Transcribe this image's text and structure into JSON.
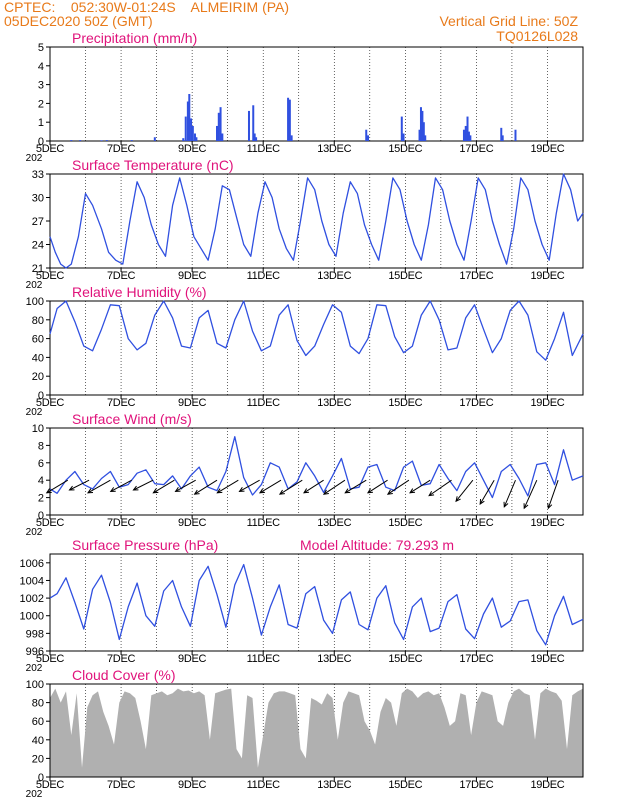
{
  "header": {
    "line1": "CPTEC:    052:30W-01:24S    ALMEIRIM (PA)",
    "line2": "05DEC2020 50Z (GMT)",
    "right1": "Vertical Grid Line: 50Z",
    "right2": "TQ0126L028"
  },
  "colors": {
    "header": "#e87a1a",
    "title": "#e0137b",
    "line": "#3050e0",
    "cloud": "#b0b0b0",
    "arrow": "#000000"
  },
  "x_axis": {
    "range_days": [
      0,
      15
    ],
    "ticks": [
      0,
      2,
      4,
      6,
      8,
      10,
      12,
      14
    ],
    "tick_labels": [
      "5DEC",
      "7DEC",
      "9DEC",
      "11DEC",
      "13DEC",
      "15DEC",
      "17DEC",
      "19DEC"
    ],
    "clipped_label": "202"
  },
  "extra_label": "Model Altitude: 79.293 m",
  "chart_data": [
    {
      "type": "bar",
      "title": "Precipitation (mm/h)",
      "ylim": [
        0,
        5
      ],
      "yticks": [
        0,
        1,
        2,
        3,
        4,
        5
      ],
      "x": [
        0.6,
        0.85,
        1.45,
        1.6,
        2.3,
        2.95,
        3.75,
        3.82,
        3.88,
        3.92,
        3.97,
        4.02,
        4.08,
        4.12,
        4.7,
        4.75,
        4.8,
        4.85,
        5.6,
        5.72,
        5.76,
        5.8,
        6.7,
        6.75,
        6.8,
        8.9,
        8.95,
        9.9,
        9.95,
        10.4,
        10.44,
        10.48,
        10.52,
        10.56,
        11.65,
        11.7,
        11.75,
        11.79,
        11.83,
        12.7,
        12.74,
        13.1
      ],
      "values": [
        0.05,
        0.05,
        0.04,
        0.05,
        0.05,
        0.2,
        0.15,
        1.3,
        2.1,
        2.5,
        1.2,
        0.8,
        0.4,
        0.2,
        0.8,
        1.5,
        1.8,
        0.4,
        1.6,
        1.9,
        0.4,
        0.2,
        2.3,
        2.2,
        0.3,
        0.6,
        0.3,
        1.3,
        0.4,
        0.6,
        1.8,
        1.6,
        1.0,
        0.3,
        0.6,
        0.8,
        1.3,
        0.5,
        0.3,
        0.7,
        0.3,
        0.6
      ]
    },
    {
      "type": "line",
      "title": "Surface Temperature (nC)",
      "ylim": [
        21,
        33
      ],
      "yticks": [
        21,
        24,
        27,
        30,
        33
      ],
      "x": [
        0,
        0.15,
        0.3,
        0.45,
        0.6,
        0.8,
        1.0,
        1.2,
        1.45,
        1.65,
        1.85,
        2.05,
        2.25,
        2.45,
        2.65,
        2.85,
        3.05,
        3.25,
        3.45,
        3.65,
        3.85,
        4.05,
        4.25,
        4.45,
        4.65,
        4.85,
        5.05,
        5.25,
        5.45,
        5.65,
        5.85,
        6.05,
        6.25,
        6.45,
        6.65,
        6.85,
        7.05,
        7.25,
        7.45,
        7.65,
        7.85,
        8.05,
        8.25,
        8.45,
        8.65,
        8.85,
        9.05,
        9.25,
        9.45,
        9.65,
        9.85,
        10.05,
        10.25,
        10.45,
        10.65,
        10.85,
        11.05,
        11.25,
        11.45,
        11.65,
        11.85,
        12.05,
        12.25,
        12.45,
        12.65,
        12.85,
        13.05,
        13.25,
        13.45,
        13.65,
        13.85,
        14.05,
        14.25,
        14.45,
        14.65,
        14.85,
        15.0
      ],
      "values": [
        25,
        23,
        21.5,
        21,
        21.5,
        25,
        30.5,
        29,
        26,
        23,
        22,
        21.5,
        27,
        32,
        30,
        26.5,
        24,
        22.5,
        29,
        32.5,
        29,
        25,
        23.5,
        22,
        26,
        31.5,
        31,
        27.5,
        24,
        22.5,
        28,
        32,
        30,
        26,
        23.5,
        22,
        27,
        32.5,
        31,
        27,
        24,
        22.5,
        28,
        32,
        30.5,
        26.5,
        24,
        22,
        27,
        32.5,
        31,
        27,
        24,
        22,
        26.5,
        32.5,
        31,
        27,
        24,
        22,
        27,
        32.5,
        31,
        27,
        24,
        21.5,
        26,
        32.5,
        31,
        27,
        24,
        22,
        28,
        33,
        31,
        27,
        28
      ]
    },
    {
      "type": "line",
      "title": "Relative Humidity (%)",
      "ylim": [
        0,
        100
      ],
      "yticks": [
        0,
        20,
        40,
        60,
        80,
        100
      ],
      "x": [
        0,
        0.2,
        0.45,
        0.7,
        0.95,
        1.2,
        1.45,
        1.7,
        1.95,
        2.2,
        2.45,
        2.7,
        2.95,
        3.2,
        3.45,
        3.7,
        3.95,
        4.2,
        4.45,
        4.7,
        4.95,
        5.2,
        5.45,
        5.7,
        5.95,
        6.2,
        6.45,
        6.7,
        6.95,
        7.2,
        7.45,
        7.7,
        7.95,
        8.2,
        8.45,
        8.7,
        8.95,
        9.2,
        9.45,
        9.7,
        9.95,
        10.2,
        10.45,
        10.7,
        10.95,
        11.2,
        11.45,
        11.7,
        11.95,
        12.2,
        12.45,
        12.7,
        12.95,
        13.2,
        13.45,
        13.7,
        13.95,
        14.2,
        14.45,
        14.7,
        15.0
      ],
      "values": [
        65,
        92,
        100,
        78,
        52,
        47,
        70,
        96,
        95,
        60,
        48,
        55,
        85,
        100,
        82,
        52,
        50,
        82,
        90,
        55,
        50,
        80,
        100,
        68,
        47,
        52,
        85,
        96,
        58,
        42,
        52,
        75,
        96,
        88,
        52,
        44,
        60,
        96,
        95,
        62,
        45,
        52,
        85,
        100,
        80,
        48,
        50,
        82,
        96,
        70,
        45,
        60,
        90,
        100,
        85,
        46,
        37,
        60,
        88,
        42,
        65
      ]
    },
    {
      "type": "line",
      "title": "Surface Wind (m/s)",
      "ylim": [
        0,
        10
      ],
      "yticks": [
        0,
        2,
        4,
        6,
        8,
        10
      ],
      "x": [
        0,
        0.2,
        0.45,
        0.7,
        0.95,
        1.2,
        1.45,
        1.7,
        1.95,
        2.2,
        2.45,
        2.7,
        2.95,
        3.2,
        3.45,
        3.7,
        3.95,
        4.2,
        4.45,
        4.7,
        4.95,
        5.2,
        5.45,
        5.7,
        5.95,
        6.2,
        6.45,
        6.7,
        6.95,
        7.2,
        7.45,
        7.7,
        7.95,
        8.2,
        8.45,
        8.7,
        8.95,
        9.2,
        9.45,
        9.7,
        9.95,
        10.2,
        10.45,
        10.7,
        10.95,
        11.2,
        11.45,
        11.7,
        11.95,
        12.2,
        12.45,
        12.7,
        12.95,
        13.2,
        13.45,
        13.7,
        13.95,
        14.2,
        14.45,
        14.7,
        15.0
      ],
      "values": [
        3,
        2.5,
        4,
        5,
        3.5,
        3,
        4.2,
        5,
        3.2,
        3.5,
        4.8,
        5.2,
        3.6,
        3.5,
        4.5,
        3,
        4.5,
        5.5,
        3.2,
        2.8,
        5,
        9,
        4.3,
        2.3,
        3.5,
        6,
        5.5,
        3,
        3.8,
        6,
        4.5,
        2.6,
        4.5,
        6.5,
        3,
        3.2,
        5.5,
        5.8,
        3.2,
        2.8,
        5.5,
        6.2,
        3.4,
        3.6,
        5.8,
        4.2,
        2.8,
        5,
        6,
        4,
        2,
        5,
        5.8,
        4.2,
        2.2,
        5.8,
        6,
        3.5,
        7.5,
        4,
        4.5
      ],
      "arrows": {
        "x": [
          0.5,
          1.1,
          1.7,
          2.3,
          2.9,
          3.5,
          4.1,
          4.7,
          5.3,
          5.9,
          6.5,
          7.1,
          7.7,
          8.3,
          8.9,
          9.5,
          10.1,
          10.7,
          11.3,
          11.9,
          12.5,
          13.1,
          13.7,
          14.3
        ],
        "u": [
          -0.75,
          -0.7,
          -0.8,
          -0.75,
          -0.7,
          -0.75,
          -0.72,
          -0.8,
          -0.75,
          -0.72,
          -0.75,
          -0.8,
          -0.7,
          -0.75,
          -0.75,
          -0.7,
          -0.75,
          -0.72,
          -0.8,
          -0.6,
          -0.5,
          -0.4,
          -0.45,
          -0.35
        ],
        "v": [
          -0.45,
          -0.35,
          -0.45,
          -0.4,
          -0.35,
          -0.45,
          -0.4,
          -0.5,
          -0.45,
          -0.4,
          -0.45,
          -0.5,
          -0.45,
          -0.5,
          -0.45,
          -0.45,
          -0.5,
          -0.45,
          -0.55,
          -0.75,
          -0.85,
          -0.95,
          -1.0,
          -1.0
        ]
      }
    },
    {
      "type": "line",
      "title": "Surface Pressure (hPa)",
      "ylim": [
        996,
        1007
      ],
      "yticks": [
        996,
        998,
        1000,
        1002,
        1004,
        1006
      ],
      "x": [
        0,
        0.2,
        0.45,
        0.7,
        0.95,
        1.2,
        1.45,
        1.7,
        1.95,
        2.2,
        2.45,
        2.7,
        2.95,
        3.2,
        3.45,
        3.7,
        3.95,
        4.2,
        4.45,
        4.7,
        4.95,
        5.2,
        5.45,
        5.7,
        5.95,
        6.2,
        6.45,
        6.7,
        6.95,
        7.2,
        7.45,
        7.7,
        7.95,
        8.2,
        8.45,
        8.7,
        8.95,
        9.2,
        9.45,
        9.7,
        9.95,
        10.2,
        10.45,
        10.7,
        10.95,
        11.2,
        11.45,
        11.7,
        11.95,
        12.2,
        12.45,
        12.7,
        12.95,
        13.2,
        13.45,
        13.7,
        13.95,
        14.2,
        14.45,
        14.7,
        15.0
      ],
      "values": [
        1002,
        1002.5,
        1004.3,
        1001.5,
        998.5,
        1003,
        1004.6,
        1001.5,
        997.3,
        1001,
        1003.7,
        1000,
        998.8,
        1002.8,
        1004,
        1001,
        998.8,
        1004,
        1005.6,
        1002.4,
        998.7,
        1003.5,
        1005.8,
        1002,
        997.8,
        1001,
        1003.5,
        999,
        998.6,
        1002.5,
        1003.3,
        999.5,
        998,
        1001.8,
        1002.7,
        999,
        998.4,
        1002,
        1003.4,
        999.2,
        997.3,
        1001,
        1002,
        998.2,
        998.6,
        1001.6,
        1002.4,
        998.5,
        997.4,
        1000.2,
        1002,
        998.7,
        999.4,
        1001.6,
        1001.8,
        998.3,
        996.7,
        1000,
        1002.2,
        999,
        999.6
      ]
    },
    {
      "type": "area",
      "title": "Cloud Cover (%)",
      "ylim": [
        0,
        100
      ],
      "yticks": [
        0,
        20,
        40,
        60,
        80,
        100
      ],
      "x": [
        0,
        0.15,
        0.3,
        0.45,
        0.6,
        0.75,
        0.9,
        1.05,
        1.2,
        1.35,
        1.5,
        1.65,
        1.8,
        1.95,
        2.1,
        2.25,
        2.4,
        2.55,
        2.7,
        2.85,
        3.0,
        3.15,
        3.3,
        3.45,
        3.6,
        3.75,
        3.9,
        4.05,
        4.2,
        4.35,
        4.5,
        4.65,
        4.8,
        4.95,
        5.1,
        5.25,
        5.4,
        5.55,
        5.7,
        5.85,
        6.0,
        6.15,
        6.3,
        6.45,
        6.6,
        6.75,
        6.9,
        7.05,
        7.2,
        7.35,
        7.5,
        7.65,
        7.8,
        7.95,
        8.1,
        8.25,
        8.4,
        8.55,
        8.7,
        8.85,
        9.0,
        9.15,
        9.3,
        9.45,
        9.6,
        9.75,
        9.9,
        10.05,
        10.2,
        10.35,
        10.5,
        10.65,
        10.8,
        10.95,
        11.1,
        11.25,
        11.4,
        11.55,
        11.7,
        11.85,
        12.0,
        12.15,
        12.3,
        12.45,
        12.6,
        12.75,
        12.9,
        13.05,
        13.2,
        13.35,
        13.5,
        13.65,
        13.8,
        13.95,
        14.1,
        14.25,
        14.4,
        14.55,
        14.7,
        14.85,
        15.0
      ],
      "values": [
        85,
        95,
        80,
        92,
        45,
        90,
        10,
        75,
        88,
        92,
        70,
        55,
        35,
        80,
        92,
        90,
        85,
        60,
        30,
        88,
        90,
        92,
        88,
        90,
        95,
        92,
        93,
        90,
        92,
        88,
        40,
        90,
        92,
        94,
        95,
        30,
        20,
        88,
        85,
        10,
        45,
        80,
        90,
        92,
        92,
        90,
        88,
        30,
        20,
        85,
        82,
        78,
        90,
        85,
        40,
        80,
        92,
        90,
        88,
        60,
        50,
        35,
        70,
        85,
        80,
        55,
        90,
        95,
        92,
        85,
        90,
        92,
        88,
        90,
        75,
        55,
        60,
        90,
        88,
        45,
        80,
        92,
        90,
        88,
        60,
        55,
        80,
        92,
        95,
        90,
        88,
        40,
        90,
        95,
        92,
        90,
        82,
        30,
        88,
        92,
        95
      ]
    }
  ]
}
